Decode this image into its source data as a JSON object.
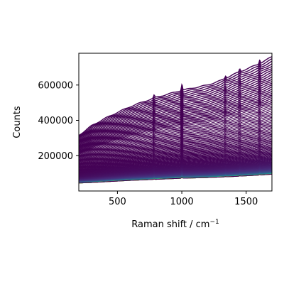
{
  "chart_data": {
    "type": "line",
    "title": "",
    "xlabel": "Raman shift / cm",
    "xlabel_superscript": "−1",
    "ylabel": "Counts",
    "xlim": [
      200,
      1700
    ],
    "ylim": [
      0,
      780000
    ],
    "xticks": [
      500,
      1000,
      1500
    ],
    "xtick_labels": [
      "500",
      "1000",
      "1500"
    ],
    "yticks": [
      200000,
      400000,
      600000
    ],
    "ytick_labels": [
      "200000",
      "400000",
      "600000"
    ],
    "grid": false,
    "legend": "none",
    "colormap": "viridis",
    "colors": {
      "dark_purple": "#440154",
      "purple": "#46337e",
      "teal": "#21908d",
      "green": "#5ec962",
      "yellow": "#fde725"
    },
    "n_series": 120,
    "x": [
      200,
      300,
      400,
      500,
      600,
      700,
      800,
      900,
      1000,
      1100,
      1200,
      1300,
      1400,
      1500,
      1600,
      1700
    ],
    "series_top": {
      "name": "",
      "values": [
        315000,
        370000,
        410000,
        445000,
        478000,
        505000,
        530000,
        550000,
        570000,
        585000,
        600000,
        625000,
        660000,
        690000,
        720000,
        760000
      ]
    },
    "series_bottom": {
      "name": "",
      "values": [
        45000,
        48000,
        52000,
        56000,
        60000,
        63000,
        66000,
        69000,
        72000,
        74000,
        76000,
        79000,
        82000,
        86000,
        90000,
        95000
      ]
    },
    "peaks": [
      {
        "x": 1001,
        "amplitude": 0.06
      },
      {
        "x": 785,
        "amplitude": 0.03
      },
      {
        "x": 1340,
        "amplitude": 0.02
      },
      {
        "x": 1450,
        "amplitude": 0.025
      },
      {
        "x": 1605,
        "amplitude": 0.03
      }
    ]
  }
}
